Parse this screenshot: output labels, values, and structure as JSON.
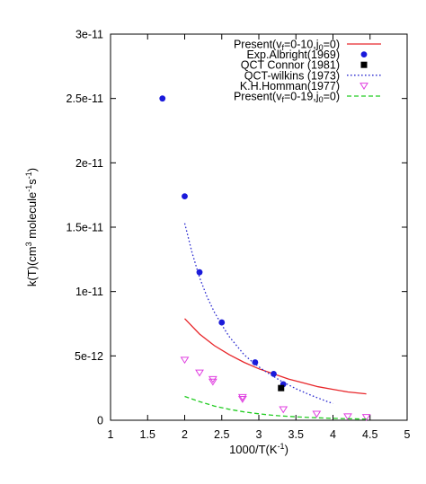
{
  "chart_data": {
    "type": "line",
    "xlabel": "1000/T(K⁻¹)",
    "ylabel": "k(T)(cm³ molecule⁻¹s⁻¹)",
    "xlim": [
      1,
      5
    ],
    "ylim": [
      0,
      3e-11
    ],
    "x_ticks": [
      1,
      1.5,
      2,
      2.5,
      3,
      3.5,
      4,
      4.5,
      5
    ],
    "x_tick_labels": [
      "1",
      "1.5",
      "2",
      "2.5",
      "3",
      "3.5",
      "4",
      "4.5",
      "5"
    ],
    "y_ticks": [
      0,
      5e-12,
      1e-11,
      1.5e-11,
      2e-11,
      2.5e-11,
      3e-11
    ],
    "y_tick_labels": [
      "0",
      "5e-12",
      "1e-11",
      "1.5e-11",
      "2e-11",
      "2.5e-11",
      "3e-11"
    ],
    "grid": false,
    "legend_position": "top-right",
    "series": [
      {
        "name": "Present(v_f=0-10,j_0=0)",
        "style": "line",
        "color": "#e8262a",
        "dash": "solid",
        "x": [
          2.0,
          2.2,
          2.4,
          2.6,
          2.8,
          3.0,
          3.2,
          3.4,
          3.6,
          3.8,
          4.0,
          4.2,
          4.45
        ],
        "y": [
          7.9e-12,
          6.7e-12,
          5.8e-12,
          5.1e-12,
          4.5e-12,
          4e-12,
          3.6e-12,
          3.2e-12,
          2.9e-12,
          2.6e-12,
          2.4e-12,
          2.2e-12,
          2.05e-12
        ]
      },
      {
        "name": "Exp.Albright(1969)",
        "style": "scatter",
        "marker": "circle",
        "color": "#1a1adb",
        "x": [
          1.7,
          2.0,
          2.2,
          2.5,
          2.95,
          3.2,
          3.33
        ],
        "y": [
          2.5e-11,
          1.74e-11,
          1.15e-11,
          7.6e-12,
          4.5e-12,
          3.6e-12,
          2.8e-12
        ]
      },
      {
        "name": "QCT Connor (1981)",
        "style": "scatter",
        "marker": "square",
        "color": "#000000",
        "x": [
          3.3
        ],
        "y": [
          2.5e-12
        ]
      },
      {
        "name": "QCT-wilkins (1973)",
        "style": "line",
        "color": "#2a2ad0",
        "dash": "dotted",
        "x": [
          2.0,
          2.1,
          2.2,
          2.3,
          2.4,
          2.5,
          2.6,
          2.7,
          2.8,
          2.9,
          3.0,
          3.1,
          3.2,
          3.3,
          3.4,
          3.5,
          3.6,
          3.7,
          3.8,
          3.9,
          4.0
        ],
        "y": [
          1.53e-11,
          1.3e-11,
          1.11e-11,
          9.6e-12,
          8.4e-12,
          7.4e-12,
          6.5e-12,
          5.8e-12,
          5.1e-12,
          4.6e-12,
          4.15e-12,
          3.75e-12,
          3.4e-12,
          3.05e-12,
          2.75e-12,
          2.45e-12,
          2.2e-12,
          1.95e-12,
          1.72e-12,
          1.5e-12,
          1.3e-12
        ]
      },
      {
        "name": "K.H.Homman(1977)",
        "style": "scatter",
        "marker": "triangle-down",
        "color": "#e040e0",
        "x": [
          2.0,
          2.2,
          2.38,
          2.38,
          2.78,
          2.78,
          3.33,
          3.78,
          4.2,
          4.45
        ],
        "y": [
          4.7e-12,
          3.7e-12,
          3.2e-12,
          3e-12,
          1.8e-12,
          1.65e-12,
          8.5e-13,
          5e-13,
          3e-13,
          2.5e-13
        ]
      },
      {
        "name": "Present(v_f=0-19,j_0=0)",
        "style": "line",
        "color": "#22cc22",
        "dash": "dashed",
        "x": [
          2.0,
          2.2,
          2.4,
          2.6,
          2.8,
          3.0,
          3.2,
          3.4,
          3.6,
          3.8,
          4.0,
          4.2,
          4.45
        ],
        "y": [
          1.85e-12,
          1.45e-12,
          1.1e-12,
          8.5e-13,
          6.5e-13,
          5e-13,
          3.8e-13,
          3e-13,
          2.4e-13,
          1.9e-13,
          1.5e-13,
          1.2e-13,
          9e-14
        ]
      }
    ],
    "legend_entries": [
      {
        "prefix": "Present(v",
        "sub1": "f",
        "mid": "=0-10,j",
        "sub2": "0",
        "suffix": "=0)"
      },
      {
        "prefix": "Exp.Albright(1969)"
      },
      {
        "prefix": "QCT Connor (1981)"
      },
      {
        "prefix": "QCT-wilkins (1973)"
      },
      {
        "prefix": "K.H.Homman(1977)"
      },
      {
        "prefix": "Present(v",
        "sub1": "f",
        "mid": "=0-19,j",
        "sub2": "0",
        "suffix": "=0)"
      }
    ],
    "ylabel_parts": {
      "a": "k(T)(cm",
      "b": "3",
      "c": " molecule",
      "d": "-1",
      "e": "s",
      "f": "-1",
      "g": ")"
    },
    "xlabel_parts": {
      "a": "1000/T(K",
      "b": "-1",
      "c": ")"
    }
  }
}
